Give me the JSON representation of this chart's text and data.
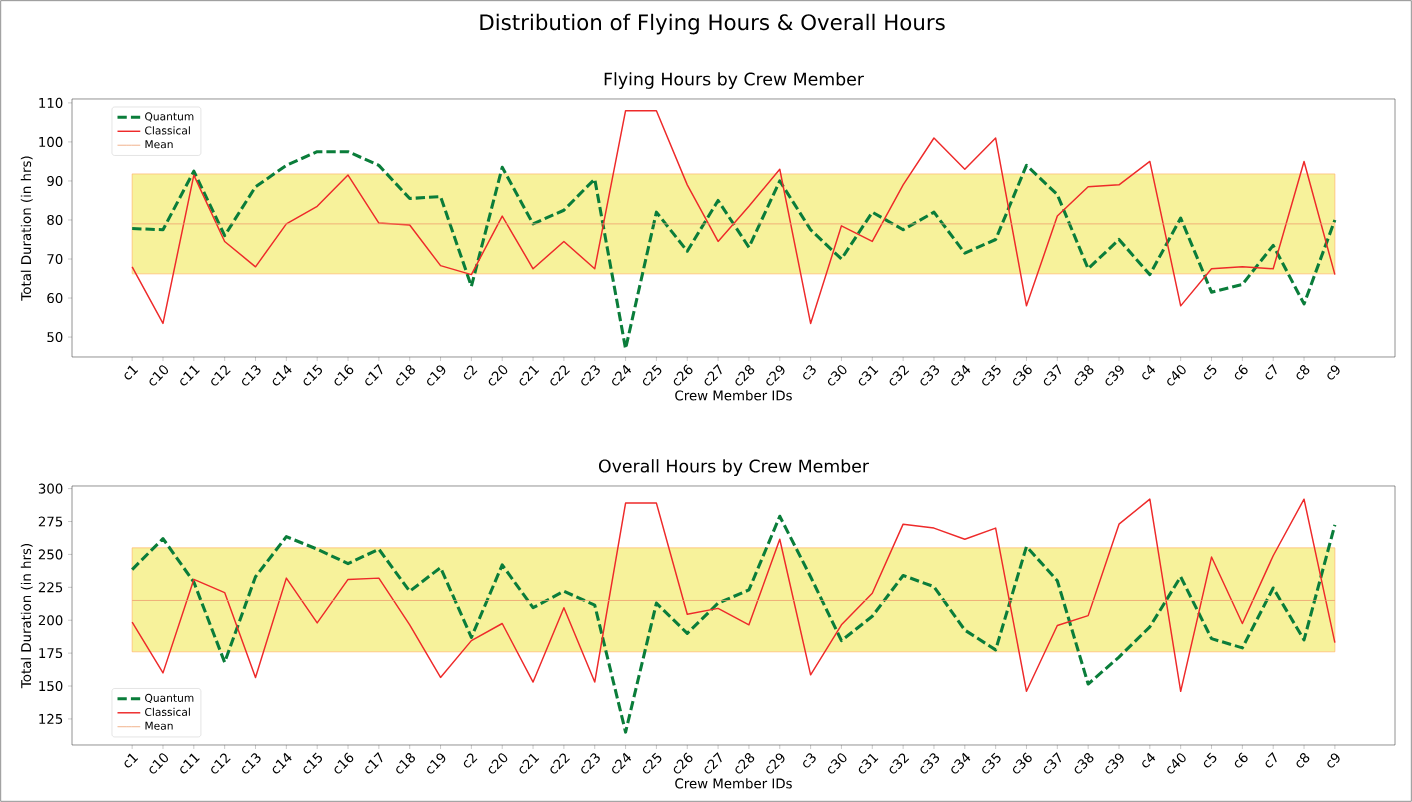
{
  "chart_data": [
    {
      "type": "line",
      "title": "Distribution of Flying Hours & Overall Hours",
      "subtitle": "Flying Hours by Crew Member",
      "xlabel": "Crew Member IDs",
      "ylabel": "Total Duration (in hrs)",
      "categories": [
        "c1",
        "c10",
        "c11",
        "c12",
        "c13",
        "c14",
        "c15",
        "c16",
        "c17",
        "c18",
        "c19",
        "c2",
        "c20",
        "c21",
        "c22",
        "c23",
        "c24",
        "c25",
        "c26",
        "c27",
        "c28",
        "c29",
        "c3",
        "c30",
        "c31",
        "c32",
        "c33",
        "c34",
        "c35",
        "c36",
        "c37",
        "c38",
        "c39",
        "c4",
        "c40",
        "c5",
        "c6",
        "c7",
        "c8",
        "c9"
      ],
      "series": [
        {
          "name": "Quantum",
          "color": "#0a7d3a",
          "line_style": "dashed",
          "values": [
            77.8,
            77.5,
            92.5,
            76,
            88.5,
            94,
            97.5,
            97.5,
            94,
            85.5,
            86,
            63,
            93.5,
            79,
            82.5,
            90.5,
            47,
            82,
            72,
            85,
            73,
            90,
            77.5,
            70,
            82,
            77.5,
            82,
            71.5,
            75,
            94,
            86.5,
            67.5,
            75,
            66,
            80.5,
            61.5,
            63.5,
            73.5,
            58.5,
            80
          ]
        },
        {
          "name": "Classical",
          "color": "#ee2a2a",
          "line_style": "solid",
          "values": [
            68,
            53.5,
            91.5,
            74.5,
            68,
            79,
            83.5,
            91.5,
            79.2,
            78.7,
            68.3,
            66,
            81,
            67.5,
            74.5,
            67.5,
            108,
            108,
            89,
            74.5,
            83.5,
            93,
            53.5,
            78.5,
            74.5,
            89,
            101,
            93,
            101,
            58,
            81,
            88.5,
            89,
            95,
            58,
            67.5,
            68,
            67.5,
            95,
            66
          ]
        }
      ],
      "ref_lines": [
        {
          "axis": "y",
          "value": 79,
          "label": "Mean",
          "color": "#eda070"
        }
      ],
      "bands": [
        {
          "axis": "y",
          "from": 66.2,
          "to": 91.8,
          "color": "#f7f29b"
        }
      ],
      "ylim": [
        44.9,
        111
      ],
      "yticks": [
        50,
        60,
        70,
        80,
        90,
        100,
        110
      ],
      "legend": "top left",
      "marker": "none"
    },
    {
      "type": "line",
      "title": "Overall Hours by Crew Member",
      "xlabel": "Crew Member IDs",
      "ylabel": "Total Duration (in hrs)",
      "categories": [
        "c1",
        "c10",
        "c11",
        "c12",
        "c13",
        "c14",
        "c15",
        "c16",
        "c17",
        "c18",
        "c19",
        "c2",
        "c20",
        "c21",
        "c22",
        "c23",
        "c24",
        "c25",
        "c26",
        "c27",
        "c28",
        "c29",
        "c3",
        "c30",
        "c31",
        "c32",
        "c33",
        "c34",
        "c35",
        "c36",
        "c37",
        "c38",
        "c39",
        "c4",
        "c40",
        "c5",
        "c6",
        "c7",
        "c8",
        "c9"
      ],
      "series": [
        {
          "name": "Quantum",
          "color": "#0a7d3a",
          "line_style": "dashed",
          "values": [
            238.5,
            262,
            229,
            168,
            233,
            263.5,
            254,
            243,
            254,
            222,
            240,
            187,
            242,
            209.5,
            222,
            211.5,
            115,
            213,
            190,
            213,
            223,
            279,
            233,
            184.5,
            203,
            234,
            225.5,
            192.5,
            177.5,
            256,
            230,
            151.5,
            172,
            195,
            233,
            186,
            179,
            224.5,
            185,
            272.5
          ]
        },
        {
          "name": "Classical",
          "color": "#ee2a2a",
          "line_style": "solid",
          "values": [
            198.5,
            160,
            231,
            221,
            156.5,
            232,
            198,
            231,
            232,
            196.5,
            156.5,
            184.5,
            197.5,
            153,
            209.5,
            153,
            289,
            289,
            204.5,
            209,
            196.5,
            261.5,
            158.5,
            196.5,
            220.5,
            273,
            270,
            261.5,
            270,
            146,
            196,
            203.5,
            273,
            292,
            146,
            248,
            197.5,
            249,
            292,
            183
          ]
        }
      ],
      "ref_lines": [
        {
          "axis": "y",
          "value": 215,
          "label": "Mean",
          "color": "#eda070"
        }
      ],
      "bands": [
        {
          "axis": "y",
          "from": 176,
          "to": 255,
          "color": "#f7f29b"
        }
      ],
      "ylim": [
        105.2,
        302
      ],
      "yticks": [
        125,
        150,
        175,
        200,
        225,
        250,
        275,
        300
      ],
      "legend": "bottom left",
      "marker": "none"
    }
  ]
}
